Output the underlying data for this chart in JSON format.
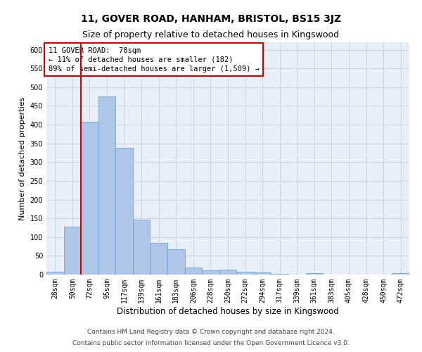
{
  "title1": "11, GOVER ROAD, HANHAM, BRISTOL, BS15 3JZ",
  "title2": "Size of property relative to detached houses in Kingswood",
  "xlabel": "Distribution of detached houses by size in Kingswood",
  "ylabel": "Number of detached properties",
  "annotation_title": "11 GOVER ROAD:  78sqm",
  "annotation_line1": "← 11% of detached houses are smaller (182)",
  "annotation_line2": "89% of semi-detached houses are larger (1,509) →",
  "footer1": "Contains HM Land Registry data © Crown copyright and database right 2024.",
  "footer2": "Contains public sector information licensed under the Open Government Licence v3.0.",
  "bin_labels": [
    "28sqm",
    "50sqm",
    "72sqm",
    "95sqm",
    "117sqm",
    "139sqm",
    "161sqm",
    "183sqm",
    "206sqm",
    "228sqm",
    "250sqm",
    "272sqm",
    "294sqm",
    "317sqm",
    "339sqm",
    "361sqm",
    "383sqm",
    "405sqm",
    "428sqm",
    "450sqm",
    "472sqm"
  ],
  "bar_values": [
    8,
    127,
    407,
    476,
    338,
    147,
    85,
    68,
    19,
    12,
    14,
    7,
    5,
    2,
    0,
    4,
    0,
    0,
    0,
    0,
    4
  ],
  "bar_color": "#aec6e8",
  "bar_edge_color": "#5a9fd4",
  "vline_bin_index": 2,
  "vline_color": "#cc0000",
  "ylim_max": 620,
  "yticks": [
    0,
    50,
    100,
    150,
    200,
    250,
    300,
    350,
    400,
    450,
    500,
    550,
    600
  ],
  "grid_color": "#c8d8e8",
  "bg_color": "#e8eff8",
  "annotation_box_color": "#ffffff",
  "annotation_box_edge": "#cc0000",
  "title1_fontsize": 10,
  "title2_fontsize": 9,
  "xlabel_fontsize": 8.5,
  "ylabel_fontsize": 8,
  "tick_fontsize": 7,
  "annotation_fontsize": 7.5,
  "footer_fontsize": 6.5
}
